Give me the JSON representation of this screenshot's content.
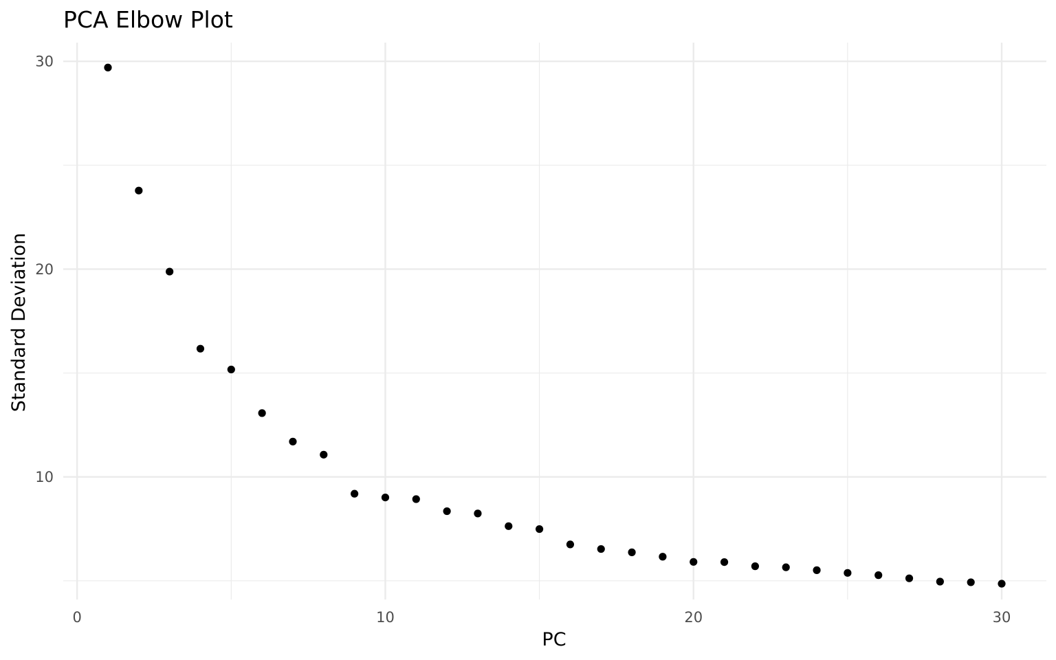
{
  "chart_data": {
    "type": "scatter",
    "title": "PCA Elbow Plot",
    "xlabel": "PC",
    "ylabel": "Standard Deviation",
    "xlim": [
      -0.45,
      31.45
    ],
    "ylim": [
      4.1,
      30.9
    ],
    "xticks": [
      0,
      10,
      20,
      30
    ],
    "xticks_minor": [
      5,
      15,
      25
    ],
    "yticks": [
      10,
      20,
      30
    ],
    "yticks_minor": [
      5,
      15,
      25
    ],
    "grid": true,
    "point_color": "#000000",
    "x": [
      1,
      2,
      3,
      4,
      5,
      6,
      7,
      8,
      9,
      10,
      11,
      12,
      13,
      14,
      15,
      16,
      17,
      18,
      19,
      20,
      21,
      22,
      23,
      24,
      25,
      26,
      27,
      28,
      29,
      30
    ],
    "y": [
      29.7,
      23.78,
      19.88,
      16.17,
      15.17,
      13.07,
      11.7,
      11.07,
      9.19,
      9.01,
      8.93,
      8.35,
      8.24,
      7.63,
      7.49,
      6.75,
      6.53,
      6.37,
      6.16,
      5.91,
      5.9,
      5.7,
      5.65,
      5.51,
      5.38,
      5.27,
      5.12,
      4.96,
      4.93,
      4.86
    ]
  }
}
